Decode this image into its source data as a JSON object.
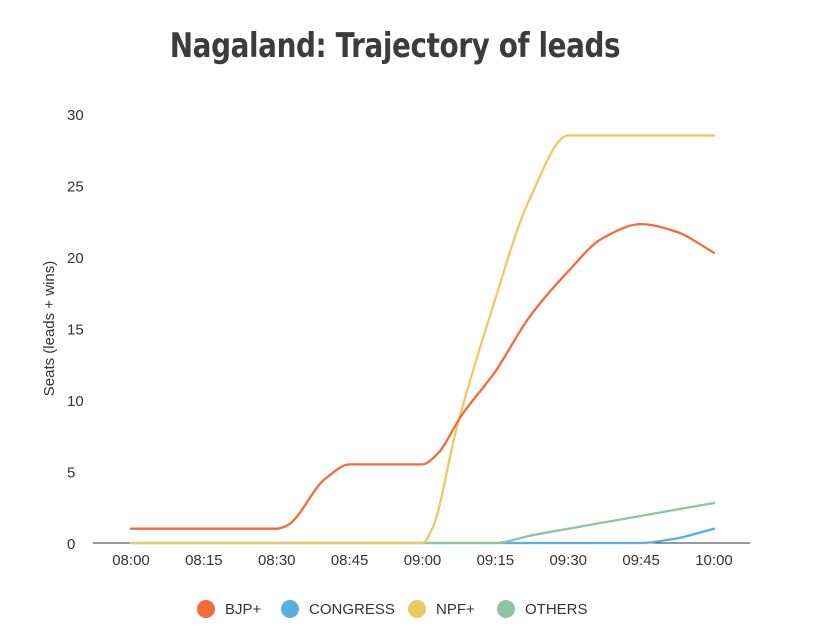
{
  "chart_data": {
    "type": "line",
    "title": "Nagaland: Trajectory of leads",
    "xlabel": "",
    "ylabel": "Seats (leads + wins)",
    "categories": [
      "08:00",
      "08:15",
      "08:30",
      "08:45",
      "09:00",
      "09:15",
      "09:30",
      "09:45",
      "10:00"
    ],
    "ylim": [
      0,
      30
    ],
    "yticks": [
      0,
      5,
      10,
      15,
      20,
      25,
      30
    ],
    "legend_position": "bottom",
    "grid": false,
    "series": [
      {
        "name": "BJP+",
        "color": "#f26b38",
        "x": [
          "08:00",
          "08:15",
          "08:30",
          "08:32",
          "08:40",
          "08:45",
          "09:00",
          "09:03",
          "09:08",
          "09:15",
          "09:22",
          "09:30",
          "09:37",
          "09:45",
          "09:52",
          "10:00"
        ],
        "values": [
          1,
          1,
          1,
          1.2,
          4.5,
          5.5,
          5.5,
          6.2,
          8.9,
          12,
          15.8,
          19,
          21.3,
          22.3,
          21.8,
          20.3
        ]
      },
      {
        "name": "CONGRESS",
        "color": "#5aaee0",
        "x": [
          "08:00",
          "08:15",
          "08:30",
          "08:45",
          "09:00",
          "09:15",
          "09:30",
          "09:45",
          "09:52",
          "10:00"
        ],
        "values": [
          0,
          0,
          0,
          0,
          0,
          0,
          0,
          0,
          0.3,
          1
        ]
      },
      {
        "name": "NPF+",
        "color": "#f0c862",
        "x": [
          "08:00",
          "08:15",
          "08:30",
          "08:45",
          "09:00",
          "09:02",
          "09:07",
          "09:14",
          "09:22",
          "09:30",
          "09:45",
          "10:00"
        ],
        "values": [
          0,
          0,
          0,
          0,
          0,
          1,
          8,
          16,
          24,
          28.5,
          28.5,
          28.5
        ]
      },
      {
        "name": "OTHERS",
        "color": "#8fc4a0",
        "x": [
          "08:00",
          "08:15",
          "08:30",
          "08:45",
          "09:00",
          "09:15",
          "09:22",
          "09:30",
          "09:45",
          "10:00"
        ],
        "values": [
          0,
          0,
          0,
          0,
          0,
          0,
          0.5,
          1,
          1.9,
          2.8
        ]
      }
    ]
  }
}
